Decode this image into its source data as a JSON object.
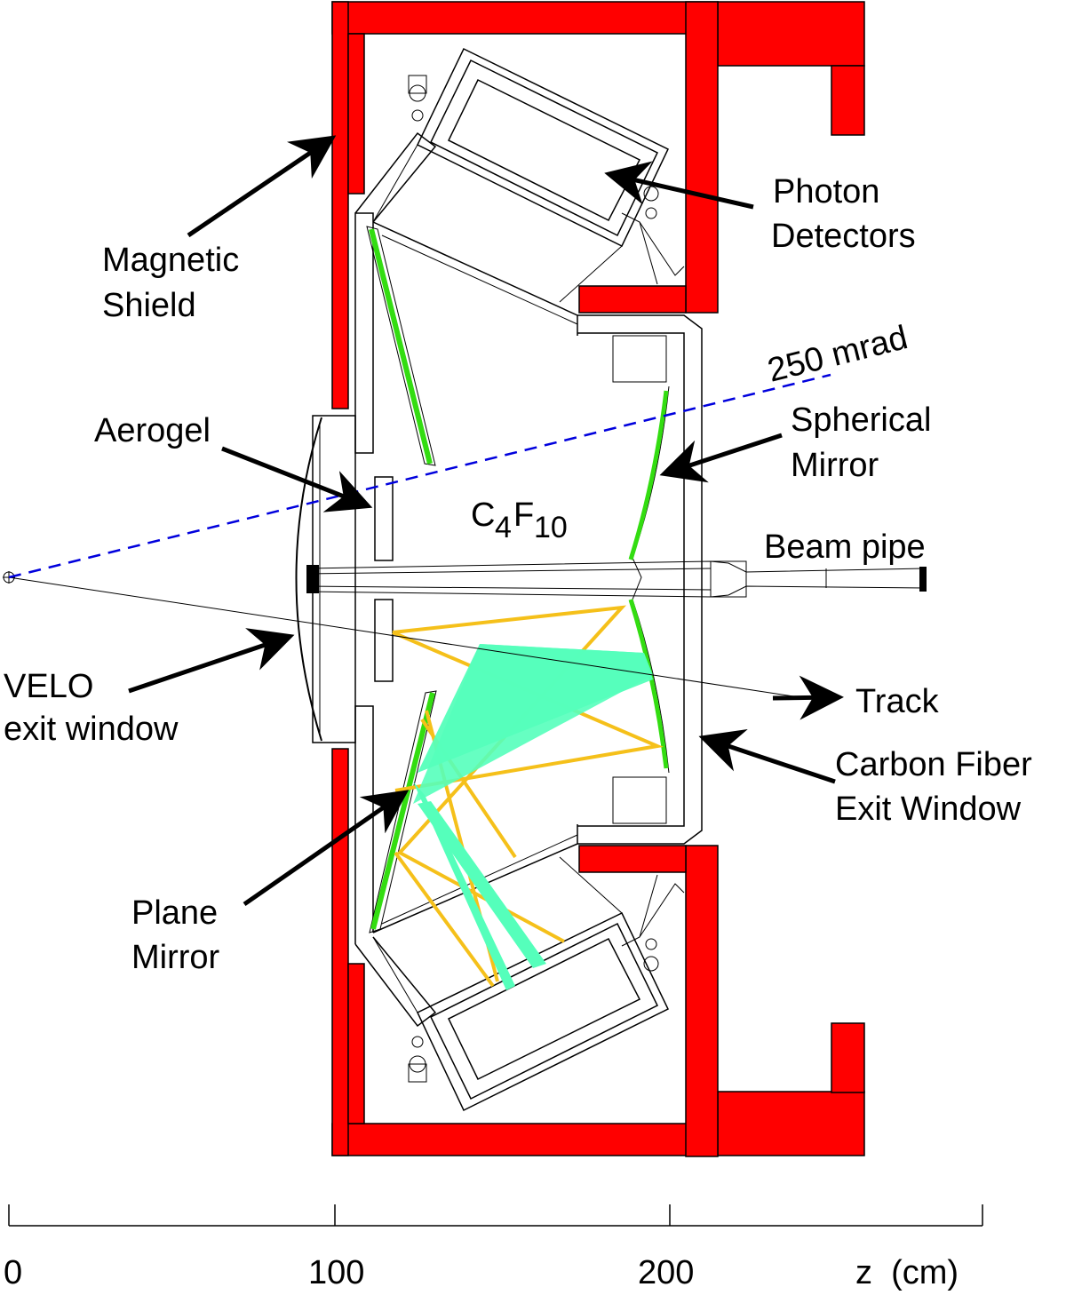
{
  "labels": {
    "photon_detectors_1": "Photon",
    "photon_detectors_2": "Detectors",
    "magnetic_shield_1": "Magnetic",
    "magnetic_shield_2": "Shield",
    "angle": "250 mrad",
    "aerogel": "Aerogel",
    "spherical_mirror_1": "Spherical",
    "spherical_mirror_2": "Mirror",
    "radiator_main": "C",
    "radiator_sub1": "4",
    "radiator_mid": "F",
    "radiator_sub2": "10",
    "beam_pipe": "Beam pipe",
    "velo_1": "VELO",
    "velo_2": "exit window",
    "track": "Track",
    "carbon_fiber_1": "Carbon Fiber",
    "carbon_fiber_2": "Exit Window",
    "plane_mirror_1": "Plane",
    "plane_mirror_2": "Mirror"
  },
  "axis": {
    "ticks": [
      "0",
      "100",
      "200"
    ],
    "unit_label": "z  (cm)"
  },
  "colors": {
    "shield": "#ff0000",
    "detector": "#aaff11",
    "aerogel": "#f2cf00",
    "mirror": "#33dd11",
    "photon_yellow": "#f5c01a",
    "photon_cyan": "#55ffbb",
    "dashed_line": "#0000dd"
  }
}
